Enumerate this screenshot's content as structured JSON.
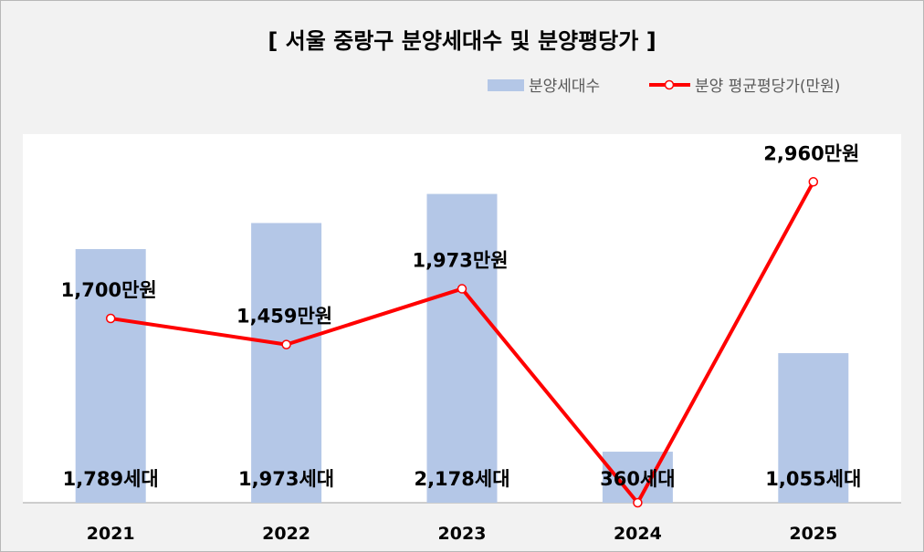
{
  "chart_data": {
    "type": "bar",
    "title": "[ 서울 중랑구 분양세대수 및 분양평당가 ]",
    "categories": [
      "2021",
      "2022",
      "2023",
      "2024",
      "2025"
    ],
    "legend": {
      "bar_label": "분양세대수",
      "line_label": "분양 평균평당가(만원)",
      "position": "top-right"
    },
    "bar_series": {
      "name": "분양세대수",
      "values": [
        1789,
        1973,
        2178,
        360,
        1055
      ],
      "labels": [
        "1,789세대",
        "1,973세대",
        "2,178세대",
        "360세대",
        "1,055세대"
      ],
      "color": "#b4c7e7"
    },
    "line_series": {
      "name": "분양 평균평당가(만원)",
      "values": [
        1700,
        1459,
        1973,
        0,
        2960
      ],
      "labels": [
        "1,700만원",
        "1,459만원",
        "1,973만원",
        "",
        "2,960만원"
      ],
      "color": "#ff0000"
    },
    "bar_axis": {
      "ylim": [
        0,
        2600
      ]
    },
    "line_axis": {
      "ylim": [
        0,
        3400
      ]
    },
    "grid": false
  }
}
